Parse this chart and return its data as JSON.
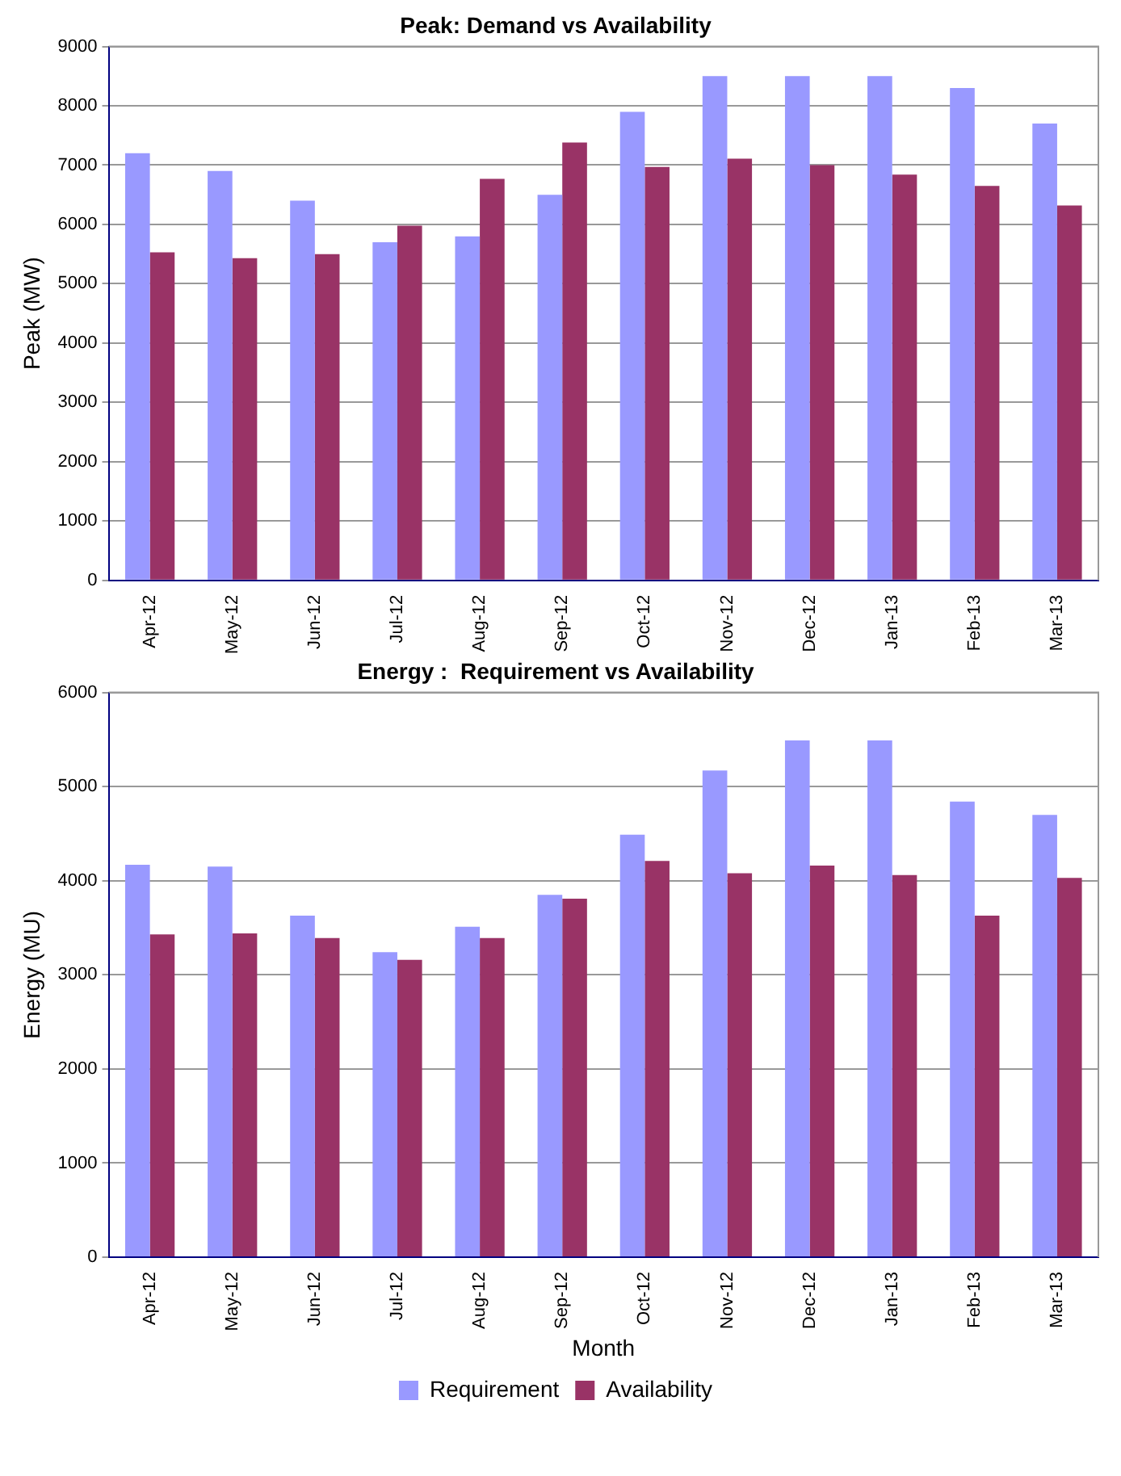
{
  "chart_data": [
    {
      "type": "bar",
      "title": "Peak: Demand vs Availability",
      "ylabel": "Peak (MW)",
      "categories": [
        "Apr-12",
        "May-12",
        "Jun-12",
        "Jul-12",
        "Aug-12",
        "Sep-12",
        "Oct-12",
        "Nov-12",
        "Dec-12",
        "Jan-13",
        "Feb-13",
        "Mar-13"
      ],
      "series": [
        {
          "color": "#9999ff",
          "values": [
            7200,
            6900,
            6400,
            5700,
            5800,
            6500,
            7900,
            8500,
            8500,
            8500,
            8300,
            7700
          ]
        },
        {
          "color": "#993366",
          "values": [
            5530,
            5430,
            5500,
            5980,
            6770,
            7380,
            6970,
            7110,
            7000,
            6840,
            6650,
            6320
          ]
        }
      ],
      "ylim": [
        0,
        9000
      ],
      "yticks": [
        0,
        1000,
        2000,
        3000,
        4000,
        5000,
        6000,
        7000,
        8000,
        9000
      ],
      "grid": "y",
      "legend": false
    },
    {
      "type": "bar",
      "title": "Energy :  Requirement vs Availability",
      "xlabel": "Month",
      "ylabel": "Energy (MU)",
      "categories": [
        "Apr-12",
        "May-12",
        "Jun-12",
        "Jul-12",
        "Aug-12",
        "Sep-12",
        "Oct-12",
        "Nov-12",
        "Dec-12",
        "Jan-13",
        "Feb-13",
        "Mar-13"
      ],
      "series": [
        {
          "name": "Requirement",
          "color": "#9999ff",
          "values": [
            4170,
            4150,
            3630,
            3240,
            3510,
            3850,
            4490,
            5170,
            5490,
            5490,
            4840,
            4700
          ]
        },
        {
          "name": "Availability",
          "color": "#993366",
          "values": [
            3430,
            3440,
            3390,
            3160,
            3390,
            3810,
            4210,
            4080,
            4160,
            4060,
            3630,
            4030
          ]
        }
      ],
      "ylim": [
        0,
        6000
      ],
      "yticks": [
        0,
        1000,
        2000,
        3000,
        4000,
        5000,
        6000
      ],
      "grid": "y",
      "legend": "bottom"
    }
  ]
}
